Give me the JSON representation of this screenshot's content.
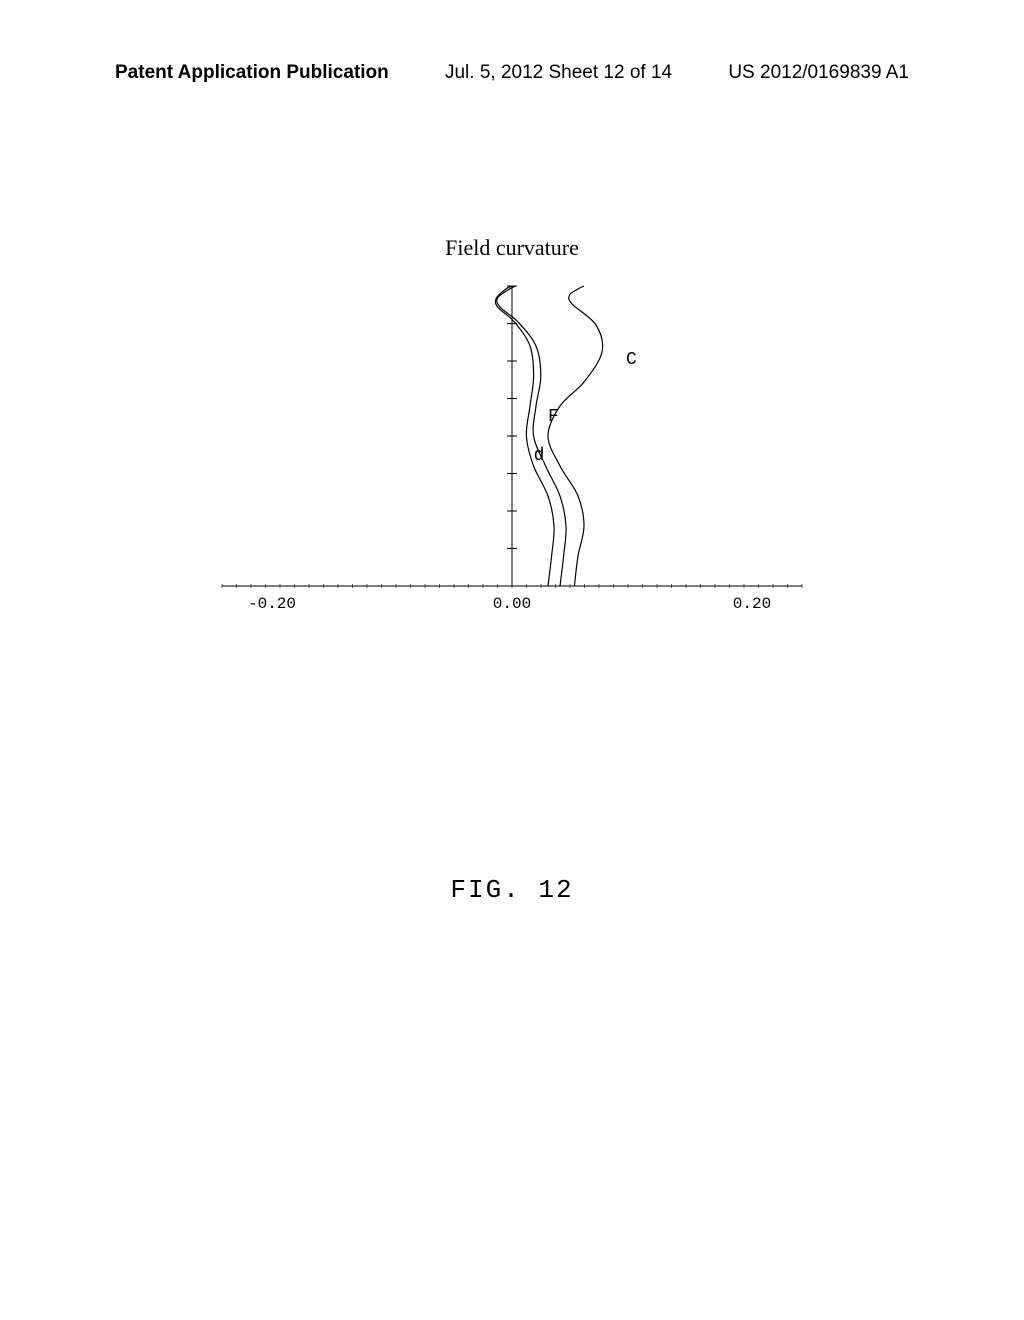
{
  "header": {
    "left": "Patent Application Publication",
    "center": "Jul. 5, 2012   Sheet 12 of 14",
    "right": "US 2012/0169839 A1"
  },
  "chart": {
    "type": "line",
    "title": "Field curvature",
    "xlim": [
      -0.2,
      0.2
    ],
    "ylim": [
      0,
      1
    ],
    "xticks": {
      "values": [
        -0.2,
        0.0,
        0.2
      ],
      "labels": [
        "-0.20",
        "0.00",
        "0.20"
      ]
    },
    "yticks": {
      "count": 8
    },
    "background_color": "#ffffff",
    "axis_color": "#000000",
    "curves": [
      {
        "label": "C",
        "label_x": 0.095,
        "label_y": 0.74,
        "color": "#000000",
        "stroke_width": 1.2,
        "points": [
          [
            0.052,
            0.0
          ],
          [
            0.055,
            0.1
          ],
          [
            0.06,
            0.2
          ],
          [
            0.055,
            0.3
          ],
          [
            0.04,
            0.4
          ],
          [
            0.03,
            0.5
          ],
          [
            0.04,
            0.6
          ],
          [
            0.06,
            0.68
          ],
          [
            0.075,
            0.78
          ],
          [
            0.07,
            0.87
          ],
          [
            0.05,
            0.94
          ],
          [
            0.048,
            0.97
          ],
          [
            0.055,
            0.99
          ],
          [
            0.06,
            1.0
          ]
        ]
      },
      {
        "label": "F",
        "label_x": 0.03,
        "label_y": 0.55,
        "color": "#000000",
        "stroke_width": 1.2,
        "points": [
          [
            0.03,
            0.0
          ],
          [
            0.033,
            0.1
          ],
          [
            0.035,
            0.2
          ],
          [
            0.03,
            0.3
          ],
          [
            0.018,
            0.4
          ],
          [
            0.012,
            0.5
          ],
          [
            0.015,
            0.6
          ],
          [
            0.018,
            0.7
          ],
          [
            0.015,
            0.8
          ],
          [
            0.002,
            0.88
          ],
          [
            -0.012,
            0.93
          ],
          [
            -0.013,
            0.96
          ],
          [
            -0.005,
            0.99
          ],
          [
            0.0,
            1.0
          ]
        ]
      },
      {
        "label": "d",
        "label_x": 0.018,
        "label_y": 0.42,
        "color": "#000000",
        "stroke_width": 1.2,
        "points": [
          [
            0.04,
            0.0
          ],
          [
            0.043,
            0.1
          ],
          [
            0.045,
            0.2
          ],
          [
            0.04,
            0.3
          ],
          [
            0.028,
            0.4
          ],
          [
            0.018,
            0.5
          ],
          [
            0.02,
            0.6
          ],
          [
            0.024,
            0.7
          ],
          [
            0.02,
            0.8
          ],
          [
            0.005,
            0.88
          ],
          [
            -0.01,
            0.93
          ],
          [
            -0.012,
            0.96
          ],
          [
            -0.002,
            0.99
          ],
          [
            0.003,
            1.0
          ]
        ]
      }
    ]
  },
  "figure": {
    "label": "FIG. 12"
  }
}
